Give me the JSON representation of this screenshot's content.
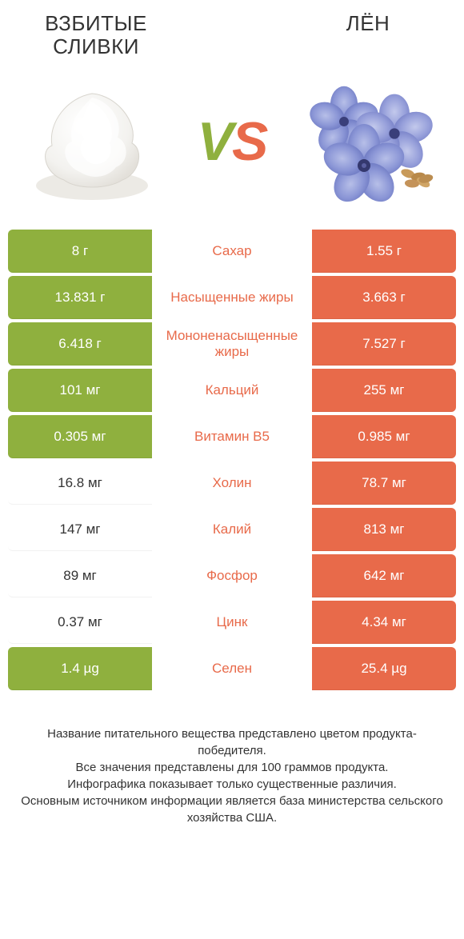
{
  "colors": {
    "green": "#8fb03e",
    "orange": "#e86a4a",
    "text": "#333333",
    "white": "#ffffff"
  },
  "header": {
    "left": "Взбитые сливки",
    "right": "Лён",
    "vs_v": "V",
    "vs_s": "S"
  },
  "rows": [
    {
      "left": "8 г",
      "mid": "Сахар",
      "right": "1.55 г",
      "left_bg": "green",
      "right_bg": "orange",
      "mid_color": "orange"
    },
    {
      "left": "13.831 г",
      "mid": "Насыщенные жиры",
      "right": "3.663 г",
      "left_bg": "green",
      "right_bg": "orange",
      "mid_color": "orange"
    },
    {
      "left": "6.418 г",
      "mid": "Мононенасыщенные жиры",
      "right": "7.527 г",
      "left_bg": "green",
      "right_bg": "orange",
      "mid_color": "orange"
    },
    {
      "left": "101 мг",
      "mid": "Кальций",
      "right": "255 мг",
      "left_bg": "green",
      "right_bg": "orange",
      "mid_color": "orange"
    },
    {
      "left": "0.305 мг",
      "mid": "Витамин B5",
      "right": "0.985 мг",
      "left_bg": "green",
      "right_bg": "orange",
      "mid_color": "orange"
    },
    {
      "left": "16.8 мг",
      "mid": "Холин",
      "right": "78.7 мг",
      "left_bg": "white",
      "right_bg": "orange",
      "mid_color": "orange"
    },
    {
      "left": "147 мг",
      "mid": "Калий",
      "right": "813 мг",
      "left_bg": "white",
      "right_bg": "orange",
      "mid_color": "orange"
    },
    {
      "left": "89 мг",
      "mid": "Фосфор",
      "right": "642 мг",
      "left_bg": "white",
      "right_bg": "orange",
      "mid_color": "orange"
    },
    {
      "left": "0.37 мг",
      "mid": "Цинк",
      "right": "4.34 мг",
      "left_bg": "white",
      "right_bg": "orange",
      "mid_color": "orange"
    },
    {
      "left": "1.4 µg",
      "mid": "Селен",
      "right": "25.4 µg",
      "left_bg": "green",
      "right_bg": "orange",
      "mid_color": "orange"
    }
  ],
  "footer": {
    "line1": "Название питательного вещества представлено цветом продукта-победителя.",
    "line2": "Все значения представлены для 100 граммов продукта.",
    "line3": "Инфографика показывает только существенные различия.",
    "line4": "Основным источником информации является база министерства сельского хозяйства США."
  }
}
